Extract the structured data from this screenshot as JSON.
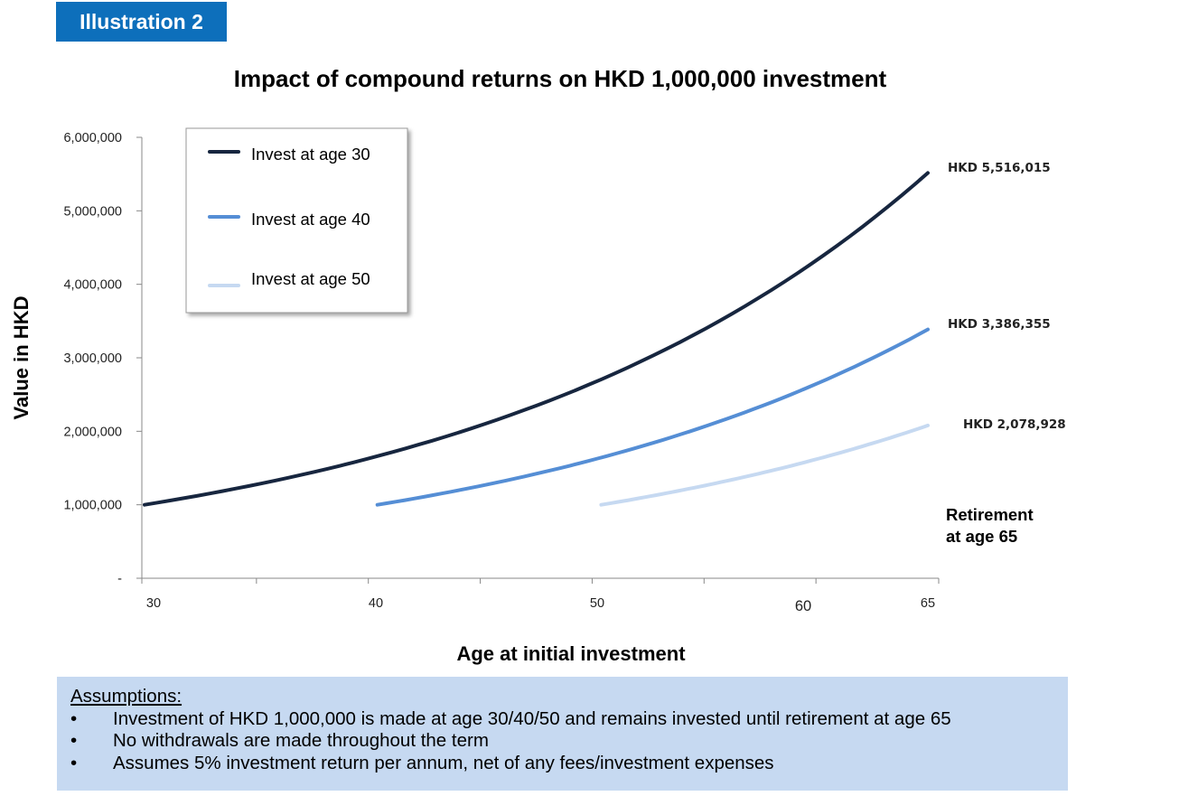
{
  "badge": "Illustration 2",
  "chart_data": {
    "type": "line",
    "title": "Impact of compound returns on HKD 1,000,000 investment",
    "xlabel": "Age at initial investment",
    "ylabel": "Value in HKD",
    "xlim": [
      30,
      65
    ],
    "ylim": [
      0,
      6000000
    ],
    "x_ticks": [
      "30",
      "40",
      "50",
      "60",
      "65"
    ],
    "y_ticks": [
      "-",
      "1,000,000",
      "2,000,000",
      "3,000,000",
      "4,000,000",
      "5,000,000",
      "6,000,000"
    ],
    "rate": 0.05,
    "series": [
      {
        "name": "Invest at age 30",
        "start_age": 30,
        "end_age": 65,
        "start_value": 1000000,
        "end_value": 5516015,
        "end_label": "HKD 5,516,015",
        "color": "#17263f"
      },
      {
        "name": "Invest at age 40",
        "start_age": 40,
        "end_age": 65,
        "start_value": 1000000,
        "end_value": 3386355,
        "end_label": "HKD 3,386,355",
        "color": "#558ed5"
      },
      {
        "name": "Invest at age 50",
        "start_age": 50,
        "end_age": 65,
        "start_value": 1000000,
        "end_value": 2078928,
        "end_label": "HKD 2,078,928",
        "color": "#c6d9f1"
      }
    ],
    "annotation": [
      "Retirement",
      "at age 65"
    ],
    "legend_position": "top-left"
  },
  "assumptions": {
    "heading": "Assumptions:",
    "bullet": "•",
    "items": [
      "Investment of HKD 1,000,000 is made at age 30/40/50 and remains invested until retirement at age 65",
      "No withdrawals  are made throughout the term",
      "Assumes 5% investment return per annum,  net of any fees/investment expenses"
    ]
  }
}
